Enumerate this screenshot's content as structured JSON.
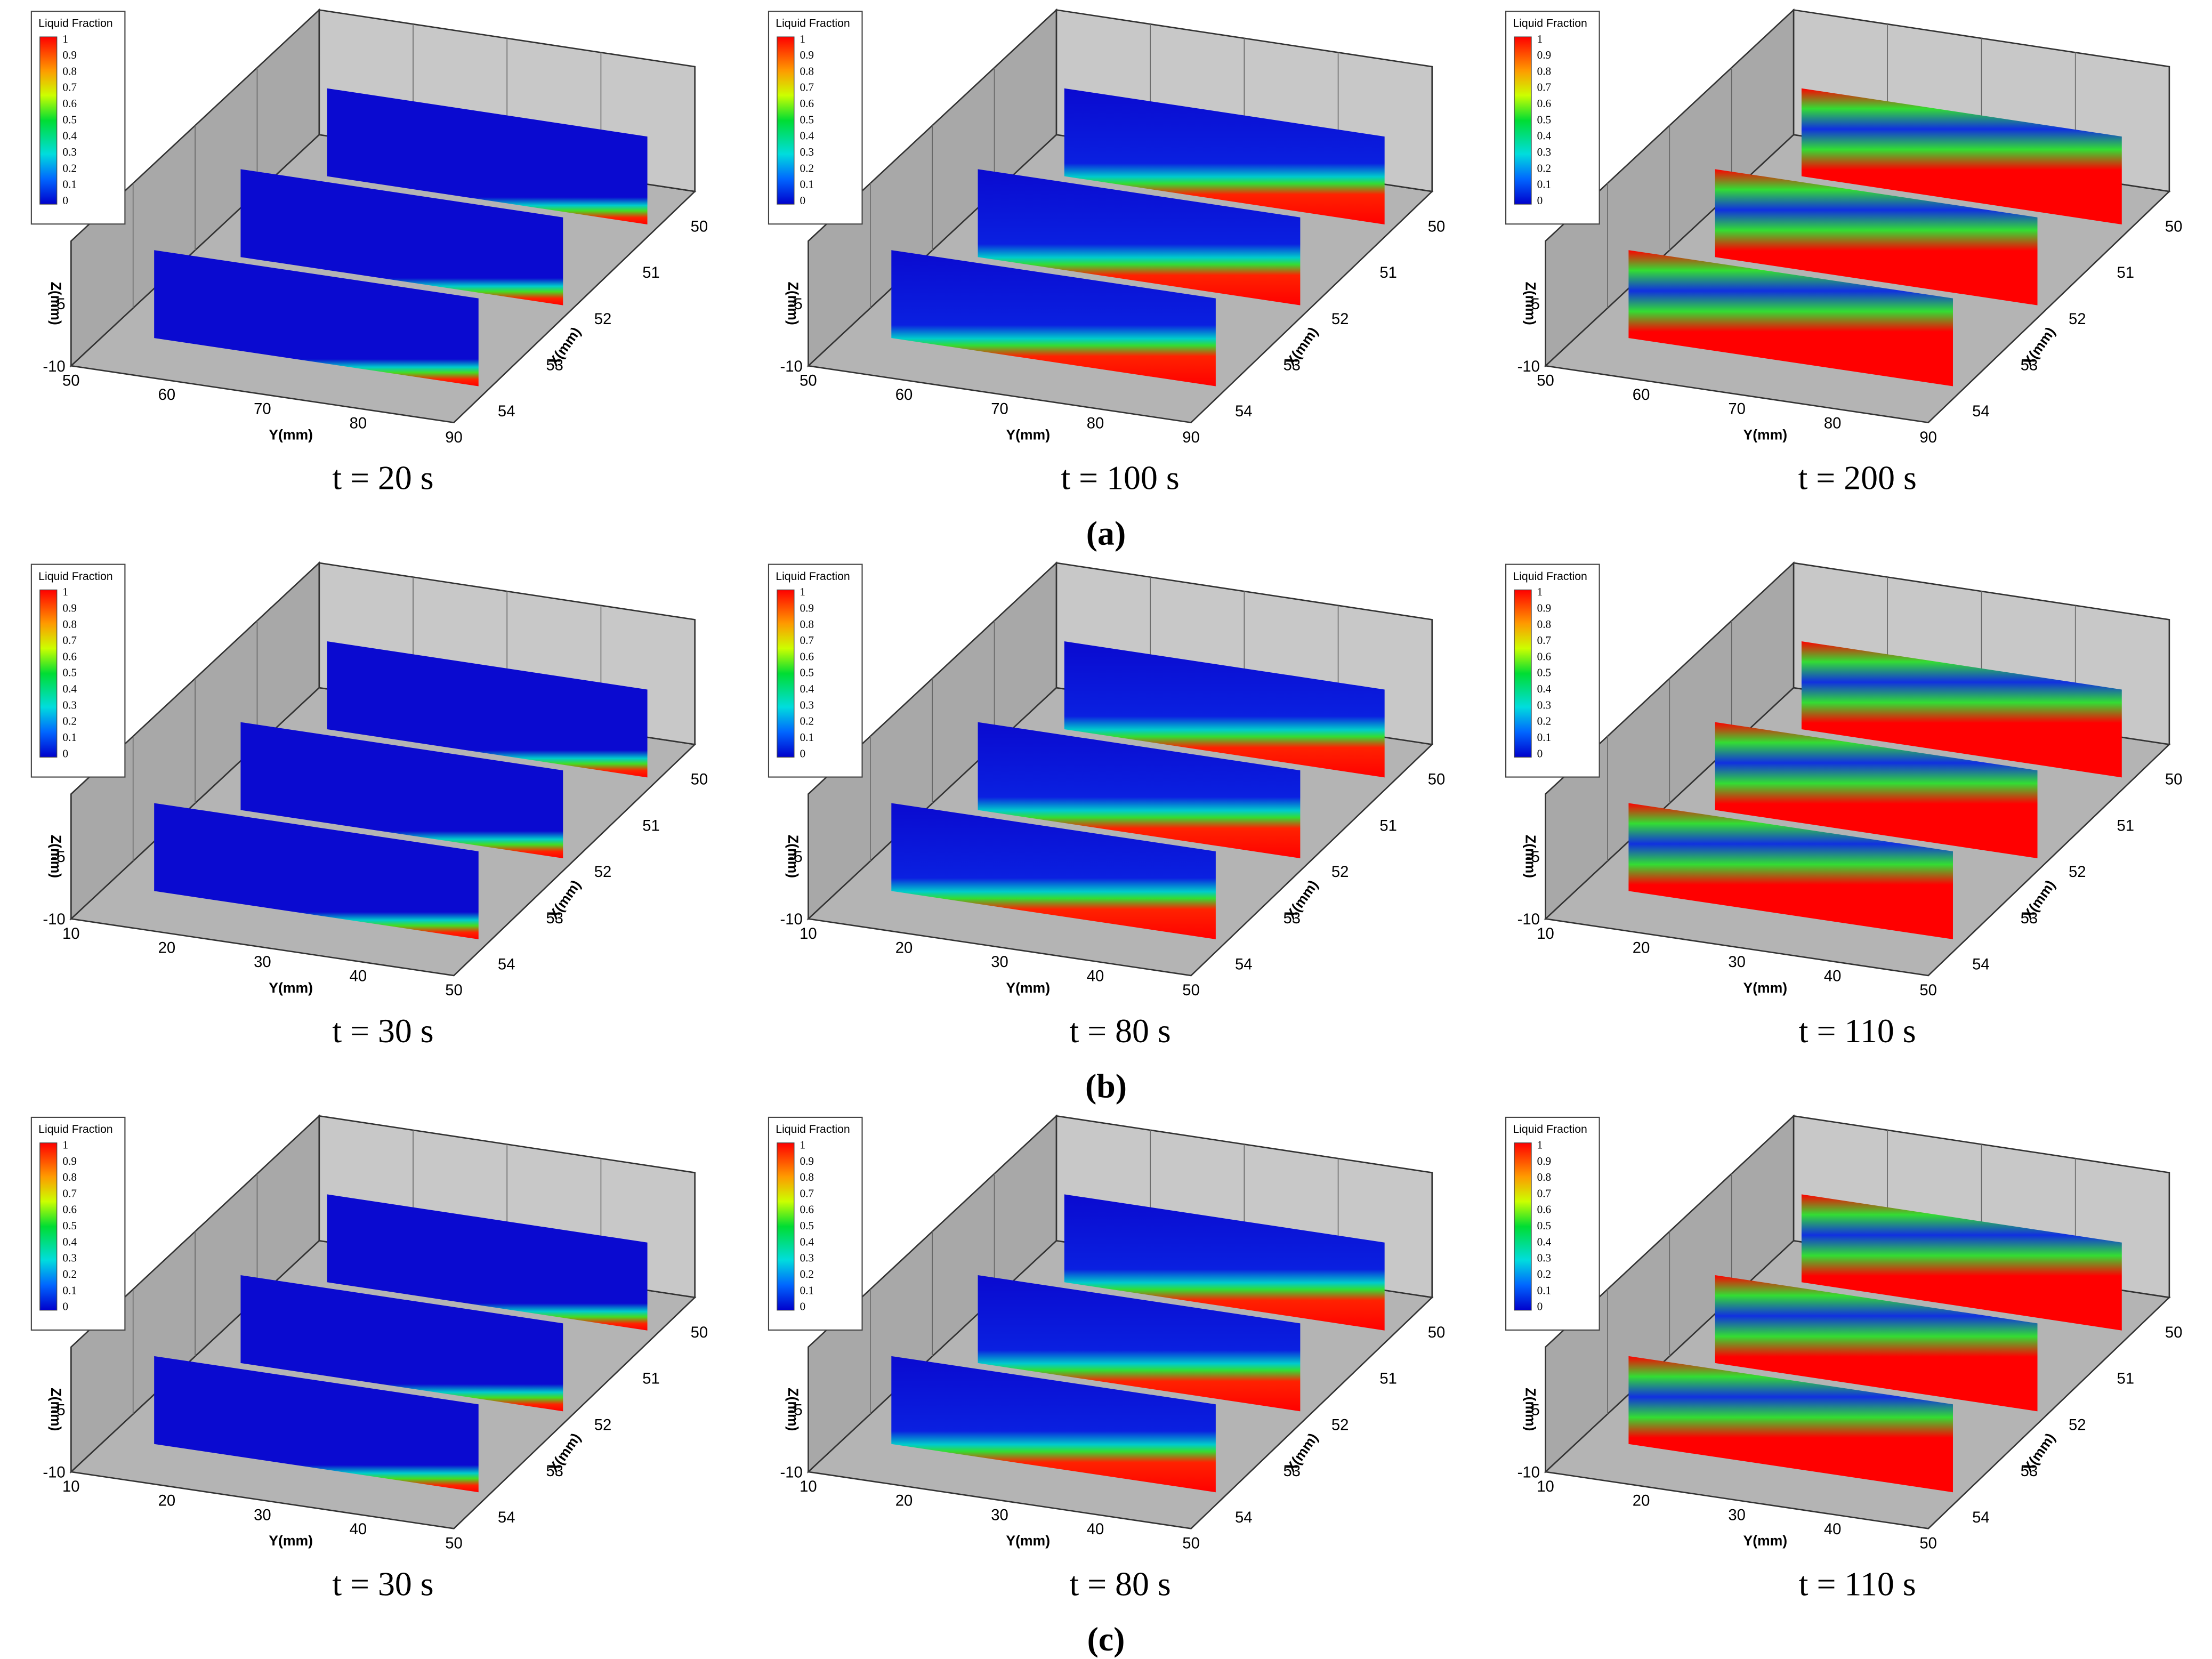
{
  "legend": {
    "title": "Liquid Fraction",
    "ticks": [
      1,
      0.9,
      0.8,
      0.7,
      0.6,
      0.5,
      0.4,
      0.3,
      0.2,
      0.1,
      0
    ]
  },
  "axes": {
    "y_label": "Y(mm)",
    "x_label": "X(mm)",
    "z_label": "Z(mm)",
    "x_ticks": [
      50,
      51,
      52,
      53,
      54
    ],
    "z_ticks": [
      -5,
      -10
    ]
  },
  "rows": [
    {
      "label": "(a)",
      "y_ticks": [
        50,
        60,
        70,
        80,
        90
      ],
      "panels": [
        {
          "caption": "t = 20 s"
        },
        {
          "caption": "t = 100 s"
        },
        {
          "caption": "t = 200 s"
        }
      ]
    },
    {
      "label": "(b)",
      "y_ticks": [
        10,
        20,
        30,
        40,
        50
      ],
      "panels": [
        {
          "caption": "t = 30 s"
        },
        {
          "caption": "t = 80 s"
        },
        {
          "caption": "t = 110 s"
        }
      ]
    },
    {
      "label": "(c)",
      "y_ticks": [
        10,
        20,
        30,
        40,
        50
      ],
      "panels": [
        {
          "caption": "t = 30 s"
        },
        {
          "caption": "t = 80 s"
        },
        {
          "caption": "t = 110 s"
        }
      ]
    }
  ]
}
